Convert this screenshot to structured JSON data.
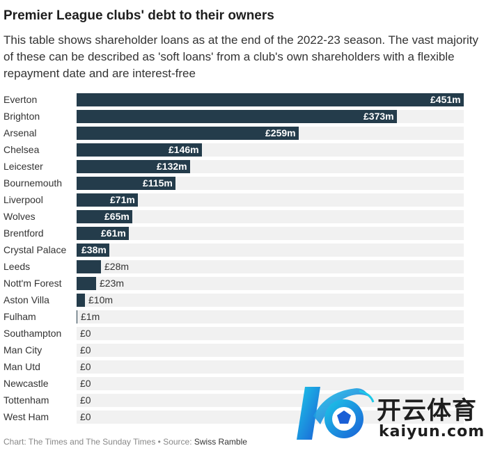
{
  "header": {
    "title": "Premier League clubs' debt to their owners",
    "subtitle": "This table shows shareholder loans as at the end of the 2022-23 season. The vast majority of these can be described as 'soft loans' from a club's own shareholders with a flexible repayment date and are interest-free"
  },
  "chart_data": {
    "type": "bar",
    "orientation": "horizontal",
    "unit": "£m",
    "categories": [
      "Everton",
      "Brighton",
      "Arsenal",
      "Chelsea",
      "Leicester",
      "Bournemouth",
      "Liverpool",
      "Wolves",
      "Brentford",
      "Crystal Palace",
      "Leeds",
      "Nott'm Forest",
      "Aston Villa",
      "Fulham",
      "Southampton",
      "Man City",
      "Man Utd",
      "Newcastle",
      "Tottenham",
      "West Ham"
    ],
    "values": [
      451,
      373,
      259,
      146,
      132,
      115,
      71,
      65,
      61,
      38,
      28,
      23,
      10,
      1,
      0,
      0,
      0,
      0,
      0,
      0
    ],
    "value_labels": [
      "£451m",
      "£373m",
      "£259m",
      "£146m",
      "£132m",
      "£115m",
      "£71m",
      "£65m",
      "£61m",
      "£38m",
      "£28m",
      "£23m",
      "£10m",
      "£1m",
      "£0",
      "£0",
      "£0",
      "£0",
      "£0",
      "£0"
    ],
    "xlim": [
      0,
      451
    ],
    "bar_color": "#243c4b",
    "track_color": "#f1f1f1"
  },
  "footer": {
    "chart_prefix": "Chart: The Times and The Sunday Times • Source: ",
    "source_name": "Swiss Ramble"
  },
  "watermark": {
    "cn_text": "开云体育",
    "en_text": "kaiyun.com"
  }
}
